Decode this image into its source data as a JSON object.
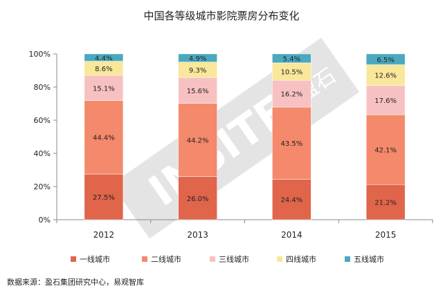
{
  "source_note": "数据来源：盈石集团研究中心，易观智库",
  "watermark": {
    "text": "INSITE",
    "logo_text": "盈石"
  },
  "chart_data": {
    "type": "bar",
    "stacked": true,
    "title": "中国各等级城市影院票房分布变化",
    "xlabel": "",
    "ylabel": "",
    "ylim": [
      0,
      100
    ],
    "yticks": [
      "0%",
      "20%",
      "40%",
      "60%",
      "80%",
      "100%"
    ],
    "categories": [
      "2012",
      "2013",
      "2014",
      "2015"
    ],
    "series": [
      {
        "name": "一线城市",
        "color": "#e0654b",
        "values": [
          27.5,
          26.0,
          24.4,
          21.2
        ],
        "labels": [
          "27.5%",
          "26.0%",
          "24.4%",
          "21.2%"
        ]
      },
      {
        "name": "二线城市",
        "color": "#f4896b",
        "values": [
          44.4,
          44.2,
          43.5,
          42.1
        ],
        "labels": [
          "44.4%",
          "44.2%",
          "43.5%",
          "42.1%"
        ]
      },
      {
        "name": "三线城市",
        "color": "#f8c1c1",
        "values": [
          15.1,
          15.6,
          16.2,
          17.6
        ],
        "labels": [
          "15.1%",
          "15.6%",
          "16.2%",
          "17.6%"
        ]
      },
      {
        "name": "四线城市",
        "color": "#f9e79a",
        "values": [
          8.6,
          9.3,
          10.5,
          12.6
        ],
        "labels": [
          "8.6%",
          "9.3%",
          "10.5%",
          "12.6%"
        ]
      },
      {
        "name": "五线城市",
        "color": "#4aa9be",
        "values": [
          4.4,
          4.9,
          5.4,
          6.5
        ],
        "labels": [
          "4.4%",
          "4.9%",
          "5.4%",
          "6.5%"
        ]
      }
    ],
    "grid": false,
    "legend_position": "bottom"
  }
}
